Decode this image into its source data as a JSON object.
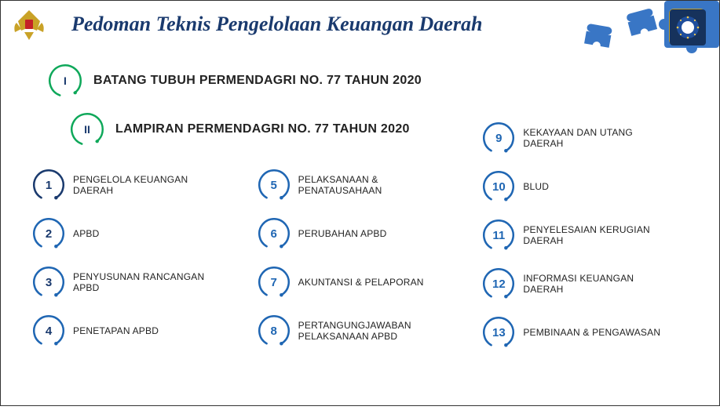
{
  "title": "Pedoman Teknis Pengelolaan Keuangan Daerah",
  "colors": {
    "header_text": "#1a3a6e",
    "green": "#0fa85a",
    "blue": "#1f66b3",
    "navy": "#1a3a6e",
    "puzzle": "#3976c5",
    "badge_bg": "#16325c",
    "garuda": "#c9a227",
    "shield_red": "#c42127",
    "item_text": "#222222"
  },
  "top": [
    {
      "roman": "I",
      "label": "BATANG TUBUH PERMENDAGRI NO. 77 TAHUN 2020",
      "arc_color": "#0fa85a"
    },
    {
      "roman": "II",
      "label": "LAMPIRAN PERMENDAGRI NO. 77 TAHUN 2020",
      "arc_color": "#0fa85a"
    }
  ],
  "items": [
    {
      "n": "1",
      "label": "PENGELOLA KEUANGAN DAERAH",
      "num_color": "#1a3a6e",
      "arc_color": "#1a3a6e"
    },
    {
      "n": "2",
      "label": "APBD",
      "num_color": "#1a3a6e",
      "arc_color": "#1f66b3"
    },
    {
      "n": "3",
      "label": "PENYUSUNAN RANCANGAN APBD",
      "num_color": "#1a3a6e",
      "arc_color": "#1f66b3"
    },
    {
      "n": "4",
      "label": "PENETAPAN APBD",
      "num_color": "#1a3a6e",
      "arc_color": "#1f66b3"
    },
    {
      "n": "5",
      "label": "PELAKSANAAN & PENATAUSAHAAN",
      "num_color": "#1f66b3",
      "arc_color": "#1f66b3"
    },
    {
      "n": "6",
      "label": "PERUBAHAN APBD",
      "num_color": "#1f66b3",
      "arc_color": "#1f66b3"
    },
    {
      "n": "7",
      "label": "AKUNTANSI & PELAPORAN",
      "num_color": "#1f66b3",
      "arc_color": "#1f66b3"
    },
    {
      "n": "8",
      "label": "PERTANGUNGJAWABAN PELAKSANAAN APBD",
      "num_color": "#1f66b3",
      "arc_color": "#1f66b3"
    },
    {
      "n": "9",
      "label": "KEKAYAAN DAN UTANG DAERAH",
      "num_color": "#1f66b3",
      "arc_color": "#1f66b3"
    },
    {
      "n": "10",
      "label": "BLUD",
      "num_color": "#1f66b3",
      "arc_color": "#1f66b3"
    },
    {
      "n": "11",
      "label": "PENYELESAIAN KERUGIAN DAERAH",
      "num_color": "#1f66b3",
      "arc_color": "#1f66b3"
    },
    {
      "n": "12",
      "label": "INFORMASI KEUANGAN DAERAH",
      "num_color": "#1f66b3",
      "arc_color": "#1f66b3"
    },
    {
      "n": "13",
      "label": "PEMBINAAN & PENGAWASAN",
      "num_color": "#1f66b3",
      "arc_color": "#1f66b3"
    }
  ],
  "layout": {
    "grid_order": [
      0,
      4,
      8,
      1,
      5,
      9,
      2,
      6,
      10,
      3,
      7,
      11,
      -1,
      -1,
      12
    ],
    "col3_offset_up": true
  }
}
